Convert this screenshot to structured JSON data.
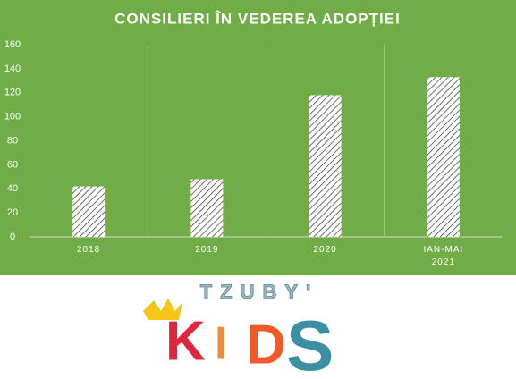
{
  "chart_data": {
    "type": "bar",
    "title": "CONSILIERI ÎN VEDEREA ADOPȚIEI",
    "categories": [
      "2018",
      "2019",
      "2020",
      "IAN-MAI 2021"
    ],
    "values": [
      42,
      48,
      118,
      133
    ],
    "ylim": [
      0,
      160
    ],
    "yticks": [
      0,
      20,
      40,
      60,
      80,
      100,
      120,
      140,
      160
    ],
    "background": "#70ad47",
    "bar_fill": "hatch",
    "grid": true
  },
  "logo": {
    "top": "TZUBY'",
    "bottom": [
      "K",
      "I",
      "D",
      "S"
    ]
  }
}
